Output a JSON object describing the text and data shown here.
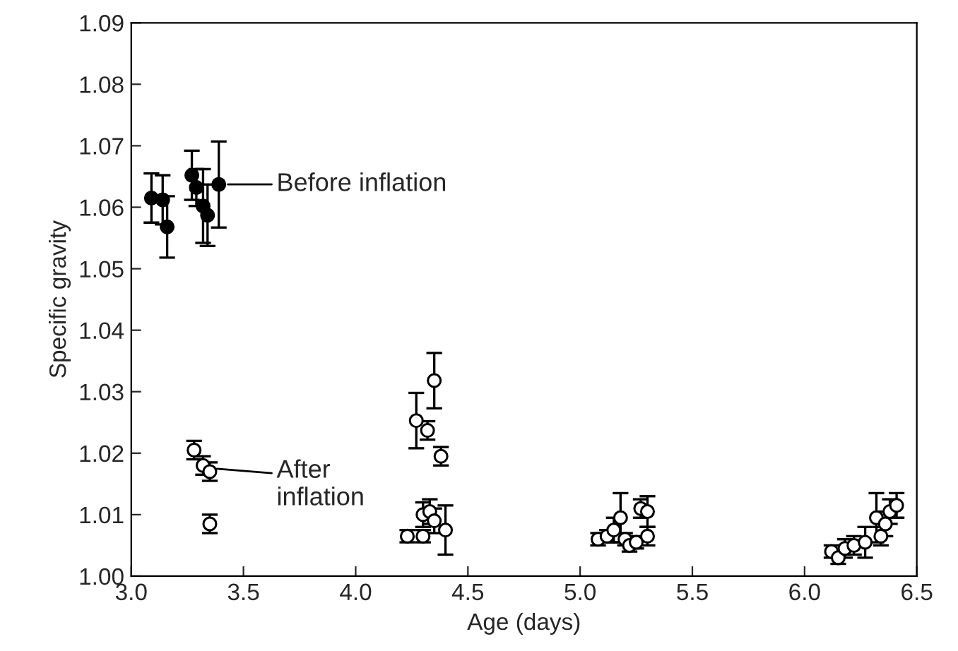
{
  "chart_data": {
    "type": "scatter",
    "xlabel": "Age (days)",
    "ylabel": "Specific gravity",
    "marker": "circle",
    "grid": false,
    "legend": false,
    "xlim": [
      3.0,
      6.5
    ],
    "ylim": [
      1.0,
      1.09
    ],
    "xticks": [
      {
        "value": 3.0,
        "label": "3.0"
      },
      {
        "value": 3.5,
        "label": "3.5"
      },
      {
        "value": 4.0,
        "label": "4.0"
      },
      {
        "value": 4.5,
        "label": "4.5"
      },
      {
        "value": 5.0,
        "label": "5.0"
      },
      {
        "value": 5.5,
        "label": "5.5"
      },
      {
        "value": 6.0,
        "label": "6.0"
      },
      {
        "value": 6.5,
        "label": "6.5"
      }
    ],
    "yticks": [
      {
        "value": 1.0,
        "label": "1.00"
      },
      {
        "value": 1.01,
        "label": "1.01"
      },
      {
        "value": 1.02,
        "label": "1.02"
      },
      {
        "value": 1.03,
        "label": "1.03"
      },
      {
        "value": 1.04,
        "label": "1.04"
      },
      {
        "value": 1.05,
        "label": "1.05"
      },
      {
        "value": 1.06,
        "label": "1.06"
      },
      {
        "value": 1.07,
        "label": "1.07"
      },
      {
        "value": 1.08,
        "label": "1.08"
      },
      {
        "value": 1.09,
        "label": "1.09"
      }
    ],
    "series": [
      {
        "color": "#000000",
        "x": [
          3.09,
          3.14,
          3.16,
          3.27,
          3.29,
          3.32,
          3.34,
          3.39
        ],
        "values": [
          1.0615,
          1.0612,
          1.0568,
          1.0652,
          1.0632,
          1.0602,
          1.0587,
          1.0637
        ],
        "errors": [
          0.004,
          0.004,
          0.005,
          0.004,
          0.003,
          0.006,
          0.005,
          0.007
        ]
      },
      {
        "color": "#ffffff",
        "x": [
          3.28,
          3.32,
          3.35,
          3.35,
          4.23,
          4.27,
          4.3,
          4.3,
          4.32,
          4.33,
          4.35,
          4.35,
          4.38,
          4.4,
          5.08,
          5.12,
          5.15,
          5.18,
          5.2,
          5.22,
          5.25,
          5.27,
          5.3,
          5.3,
          6.12,
          6.15,
          6.18,
          6.22,
          6.27,
          6.32,
          6.34,
          6.36,
          6.38,
          6.41
        ],
        "values": [
          1.0205,
          1.018,
          1.017,
          1.0085,
          1.0065,
          1.0253,
          1.01,
          1.0065,
          1.0237,
          1.0105,
          1.0318,
          1.009,
          1.0195,
          1.0075,
          1.006,
          1.0065,
          1.0075,
          1.0095,
          1.006,
          1.005,
          1.0055,
          1.011,
          1.0105,
          1.0065,
          1.004,
          1.003,
          1.0045,
          1.005,
          1.0055,
          1.0095,
          1.0065,
          1.0085,
          1.0105,
          1.0115
        ],
        "errors": [
          0.0015,
          0.0015,
          0.0015,
          0.0015,
          0.001,
          0.0045,
          0.002,
          0.001,
          0.0015,
          0.002,
          0.0045,
          0.002,
          0.0015,
          0.004,
          0.001,
          0.001,
          0.002,
          0.004,
          0.001,
          0.001,
          0.001,
          0.0015,
          0.0025,
          0.0015,
          0.001,
          0.001,
          0.0015,
          0.0015,
          0.0025,
          0.004,
          0.0015,
          0.002,
          0.002,
          0.002
        ]
      }
    ],
    "annotations": [
      "Before inflation",
      "After\ninflation"
    ]
  }
}
